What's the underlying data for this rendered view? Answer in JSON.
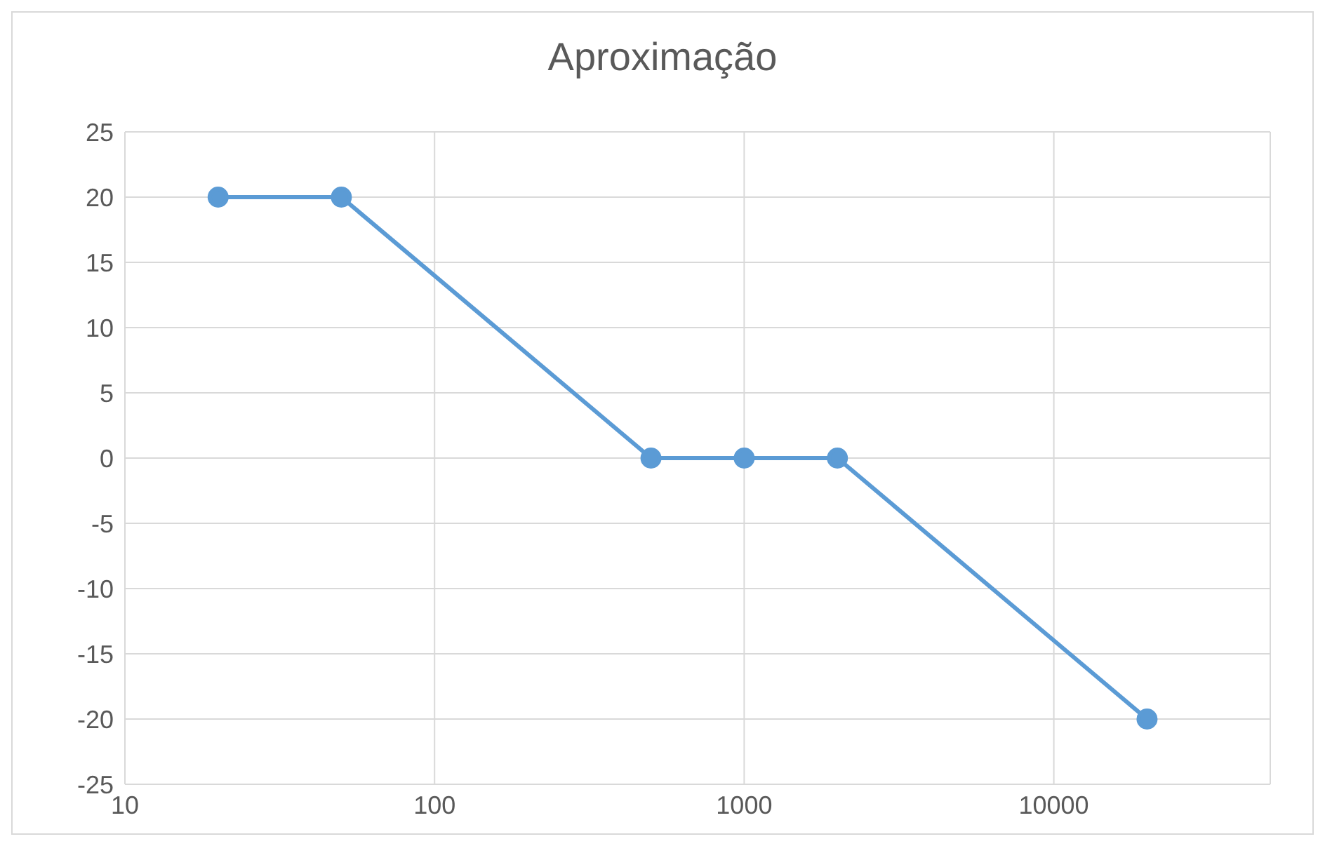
{
  "chart_data": {
    "type": "line",
    "title": "Aproximação",
    "x": [
      20,
      50,
      500,
      1000,
      2000,
      20000
    ],
    "series": [
      {
        "color": "#5b9bd5",
        "values": [
          20,
          20,
          0,
          0,
          0,
          -20
        ]
      }
    ],
    "log": "x",
    "xlim": [
      10,
      50000
    ],
    "xticks": [
      10,
      100,
      1000,
      10000
    ],
    "ylim": [
      -25,
      25
    ],
    "yticks": [
      -25,
      -20,
      -15,
      -10,
      -5,
      0,
      5,
      10,
      15,
      20,
      25
    ],
    "grid": true,
    "marker": "circle",
    "line_style": "solid"
  }
}
